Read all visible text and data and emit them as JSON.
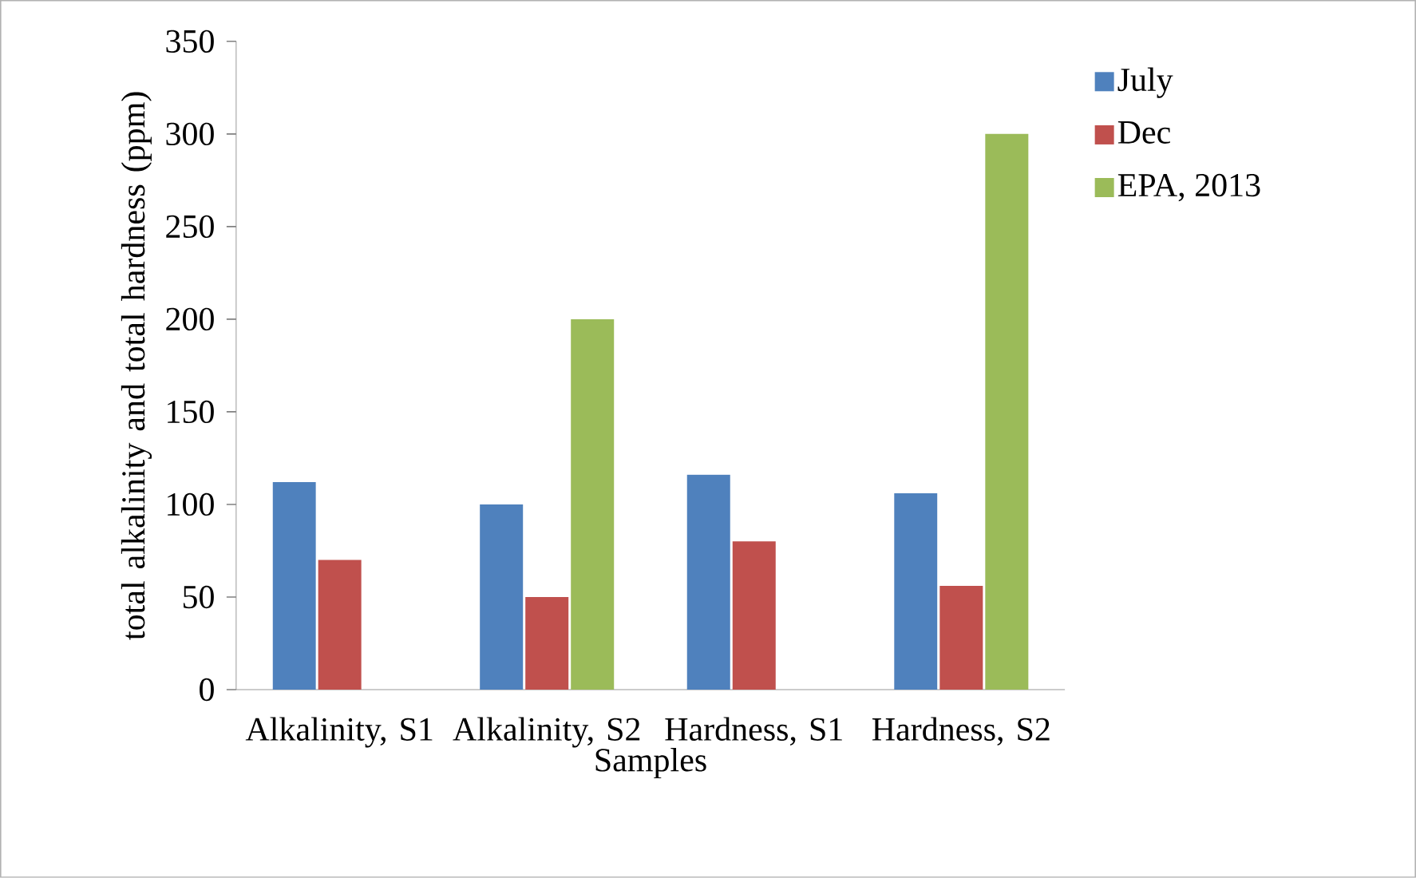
{
  "chart_data": {
    "type": "bar",
    "xlabel": "Samples",
    "ylabel": "total alkalinity and total hardness (ppm)",
    "categories": [
      "Alkalinity, S1",
      "Alkalinity, S2",
      "Hardness, S1",
      "Hardness, S2"
    ],
    "series": [
      {
        "name": "July",
        "color": "#4f81bd",
        "values": [
          112,
          100,
          116,
          106
        ]
      },
      {
        "name": "Dec",
        "color": "#c0504d",
        "values": [
          70,
          50,
          80,
          56
        ]
      },
      {
        "name": "EPA, 2013",
        "color": "#9bbb59",
        "values": [
          null,
          200,
          null,
          300
        ]
      }
    ],
    "ylim": [
      0,
      350
    ],
    "yticks": [
      0,
      50,
      100,
      150,
      200,
      250,
      300,
      350
    ],
    "legend": "top right"
  }
}
